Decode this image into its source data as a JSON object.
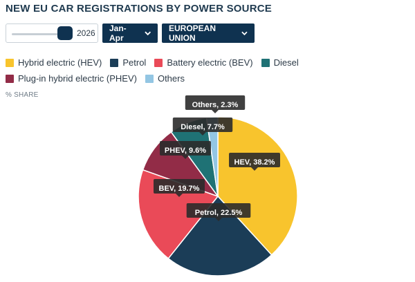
{
  "header": {
    "title": "NEW EU CAR REGISTRATIONS BY POWER SOURCE"
  },
  "controls": {
    "year": "2026",
    "period": "Jan-Apr",
    "region": "EUROPEAN UNION",
    "year_slider_level": 1.0
  },
  "unit_label": "% SHARE",
  "colors": {
    "hev": "#f8c42d",
    "petrol": "#1b3d57",
    "bev": "#ea4a58",
    "diesel": "#1f7275",
    "phev": "#922c47",
    "others": "#93c6e3",
    "tooltip_bg": "#2b2b2b",
    "control_bg": "#0f3250"
  },
  "chart_data": {
    "type": "pie",
    "title": "NEW EU CAR REGISTRATIONS BY POWER SOURCE",
    "unit": "% SHARE",
    "legend_position": "top",
    "slices": [
      {
        "key": "hev",
        "legend": "Hybrid electric (HEV)",
        "label": "HEV, 38.2%",
        "value": 38.2
      },
      {
        "key": "petrol",
        "legend": "Petrol",
        "label": "Petrol, 22.5%",
        "value": 22.5
      },
      {
        "key": "bev",
        "legend": "Battery electric (BEV)",
        "label": "BEV, 19.7%",
        "value": 19.7
      },
      {
        "key": "phev",
        "legend": "Plug-in hybrid electric (PHEV)",
        "label": "PHEV, 9.6%",
        "value": 9.6
      },
      {
        "key": "diesel",
        "legend": "Diesel",
        "label": "Diesel, 7.7%",
        "value": 7.7
      },
      {
        "key": "others",
        "legend": "Others",
        "label": "Others, 2.3%",
        "value": 2.3
      }
    ]
  },
  "legend": [
    {
      "key": "hev",
      "label": "Hybrid electric (HEV)"
    },
    {
      "key": "petrol",
      "label": "Petrol"
    },
    {
      "key": "bev",
      "label": "Battery electric (BEV)"
    },
    {
      "key": "diesel",
      "label": "Diesel"
    },
    {
      "key": "phev",
      "label": "Plug-in hybrid electric (PHEV)"
    },
    {
      "key": "others",
      "label": "Others"
    }
  ]
}
